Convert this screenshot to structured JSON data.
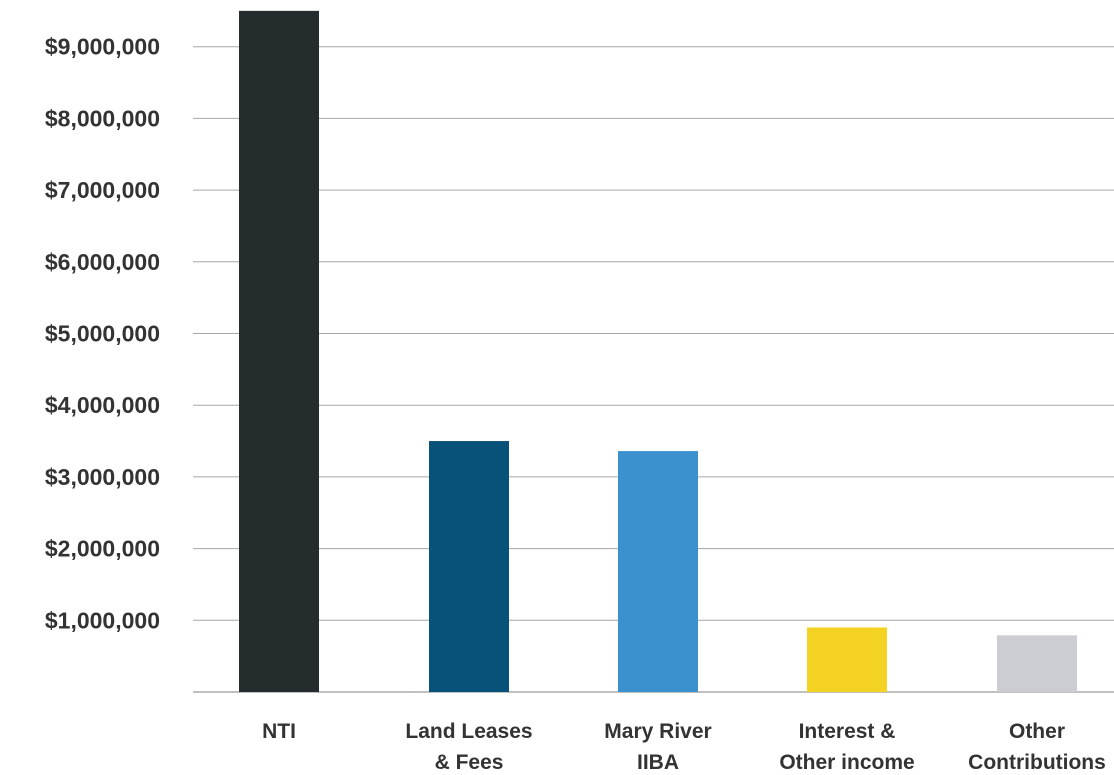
{
  "chart_data": {
    "type": "bar",
    "categories": [
      [
        "NTI"
      ],
      [
        "Land Leases",
        "& Fees"
      ],
      [
        "Mary River",
        "IIBA"
      ],
      [
        "Interest &",
        "Other income"
      ],
      [
        "Other",
        "Contributions"
      ]
    ],
    "values": [
      9500000,
      3500000,
      3360000,
      900000,
      790000
    ],
    "colors": [
      "#252c2d",
      "#08527a",
      "#3a91cd",
      "#f4d222",
      "#cbcdd3"
    ],
    "yticks": [
      "$1,000,000",
      "$2,000,000",
      "$3,000,000",
      "$4,000,000",
      "$5,000,000",
      "$6,000,000",
      "$7,000,000",
      "$8,000,000",
      "$9,000,000"
    ],
    "ytick_values": [
      1000000,
      2000000,
      3000000,
      4000000,
      5000000,
      6000000,
      7000000,
      8000000,
      9000000
    ],
    "ylim": [
      0,
      9500000
    ],
    "title": "",
    "xlabel": "",
    "ylabel": "",
    "grid": true,
    "legend": "none"
  }
}
